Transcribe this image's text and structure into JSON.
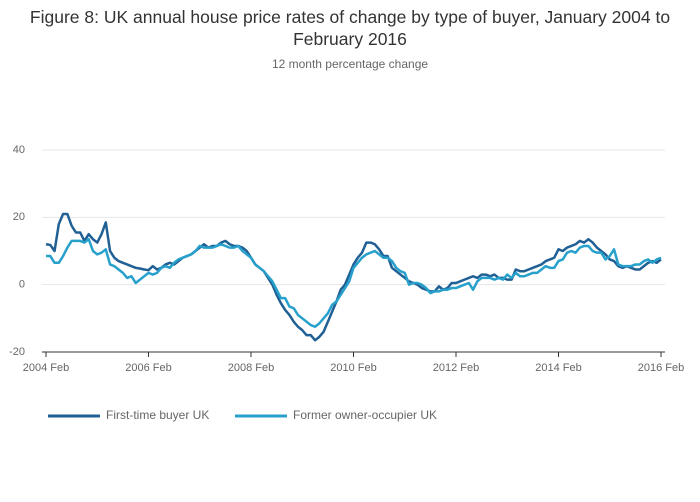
{
  "chart_data": {
    "type": "line",
    "title": "Figure 8: UK annual house price rates of change by type of buyer, January 2004 to February 2016",
    "subtitle": "12 month percentage change",
    "x": [
      "2004-02",
      "2004-03",
      "2004-04",
      "2004-05",
      "2004-06",
      "2004-07",
      "2004-08",
      "2004-09",
      "2004-10",
      "2004-11",
      "2004-12",
      "2005-01",
      "2005-02",
      "2005-03",
      "2005-04",
      "2005-05",
      "2005-06",
      "2005-07",
      "2005-08",
      "2005-09",
      "2005-10",
      "2005-11",
      "2005-12",
      "2006-01",
      "2006-02",
      "2006-03",
      "2006-04",
      "2006-05",
      "2006-06",
      "2006-07",
      "2006-08",
      "2006-09",
      "2006-10",
      "2006-11",
      "2006-12",
      "2007-01",
      "2007-02",
      "2007-03",
      "2007-04",
      "2007-05",
      "2007-06",
      "2007-07",
      "2007-08",
      "2007-09",
      "2007-10",
      "2007-11",
      "2007-12",
      "2008-01",
      "2008-02",
      "2008-03",
      "2008-04",
      "2008-05",
      "2008-06",
      "2008-07",
      "2008-08",
      "2008-09",
      "2008-10",
      "2008-11",
      "2008-12",
      "2009-01",
      "2009-02",
      "2009-03",
      "2009-04",
      "2009-05",
      "2009-06",
      "2009-07",
      "2009-08",
      "2009-09",
      "2009-10",
      "2009-11",
      "2009-12",
      "2010-01",
      "2010-02",
      "2010-03",
      "2010-04",
      "2010-05",
      "2010-06",
      "2010-07",
      "2010-08",
      "2010-09",
      "2010-10",
      "2010-11",
      "2010-12",
      "2011-01",
      "2011-02",
      "2011-03",
      "2011-04",
      "2011-05",
      "2011-06",
      "2011-07",
      "2011-08",
      "2011-09",
      "2011-10",
      "2011-11",
      "2011-12",
      "2012-01",
      "2012-02",
      "2012-03",
      "2012-04",
      "2012-05",
      "2012-06",
      "2012-07",
      "2012-08",
      "2012-09",
      "2012-10",
      "2012-11",
      "2012-12",
      "2013-01",
      "2013-02",
      "2013-03",
      "2013-04",
      "2013-05",
      "2013-06",
      "2013-07",
      "2013-08",
      "2013-09",
      "2013-10",
      "2013-11",
      "2013-12",
      "2014-01",
      "2014-02",
      "2014-03",
      "2014-04",
      "2014-05",
      "2014-06",
      "2014-07",
      "2014-08",
      "2014-09",
      "2014-10",
      "2014-11",
      "2014-12",
      "2015-01",
      "2015-02",
      "2015-03",
      "2015-04",
      "2015-05",
      "2015-06",
      "2015-07",
      "2015-08",
      "2015-09",
      "2015-10",
      "2015-11",
      "2015-12",
      "2016-01",
      "2016-02"
    ],
    "series": [
      {
        "name": "First-time buyer UK",
        "color": "#206095",
        "values": [
          12,
          11.8,
          10,
          18,
          21,
          21,
          17.5,
          15.5,
          15.5,
          13,
          15,
          13.5,
          12.5,
          15,
          18.5,
          10,
          8,
          7,
          6.5,
          6,
          5.5,
          5,
          4.8,
          4.5,
          4.3,
          5.5,
          4.5,
          5,
          6,
          6.5,
          6,
          7,
          8,
          8.5,
          9,
          10,
          11,
          12,
          11,
          11.5,
          11.5,
          12.5,
          13,
          12,
          11.5,
          11.5,
          11,
          10,
          8,
          6,
          5,
          4,
          2,
          0,
          -3,
          -5.5,
          -7.5,
          -9,
          -11,
          -12.5,
          -13.5,
          -15,
          -15,
          -16.5,
          -15.5,
          -14,
          -11,
          -8,
          -5,
          -1.5,
          0,
          3,
          6,
          8,
          9.5,
          12.5,
          12.5,
          12,
          10.5,
          8.5,
          8.5,
          5,
          4,
          3,
          2,
          1,
          0.5,
          0,
          -1,
          -1.5,
          -2,
          -2,
          -0.5,
          -1.5,
          -1,
          0.5,
          0.5,
          1,
          1.5,
          2,
          2.5,
          2,
          3,
          3,
          2.5,
          3,
          2,
          2,
          1.5,
          1.5,
          4.5,
          4,
          4,
          4.5,
          5,
          5.5,
          6,
          7,
          7.5,
          8,
          10.5,
          10,
          11,
          11.5,
          12,
          13,
          12.5,
          13.5,
          12.5,
          11,
          10,
          9,
          7.5,
          7,
          5.5,
          5,
          5.5,
          5,
          4.5,
          4.5,
          5.5,
          6.5,
          7,
          6.5,
          7.5
        ]
      },
      {
        "name": "Former owner-occupier UK",
        "color": "#27a0cc",
        "values": [
          8.5,
          8.5,
          6.5,
          6.5,
          8.5,
          11,
          13,
          13,
          13,
          12.5,
          13.5,
          10,
          9,
          9.5,
          10.5,
          6,
          5.5,
          4.5,
          3.5,
          2,
          2.5,
          0.5,
          1.5,
          2.5,
          3.5,
          3,
          3.5,
          5,
          5.5,
          5,
          6.5,
          7.5,
          8,
          8.5,
          9,
          10,
          11.5,
          11,
          11,
          11,
          11.5,
          12,
          11.5,
          11,
          11,
          11.5,
          10,
          9,
          8,
          6,
          5,
          4,
          2.5,
          1,
          -1.5,
          -4,
          -4,
          -6.5,
          -7,
          -9,
          -10,
          -11,
          -12,
          -12.5,
          -11.5,
          -10,
          -8.5,
          -6,
          -5,
          -3,
          -1,
          1,
          5,
          6.5,
          8,
          9,
          9.5,
          10,
          9,
          8,
          8,
          7,
          5,
          4,
          3.5,
          0,
          0.5,
          0.5,
          0,
          -1,
          -2.5,
          -2,
          -2,
          -1.5,
          -1.5,
          -1,
          -1,
          -0.5,
          0,
          0.5,
          -1.5,
          1,
          2,
          2,
          2,
          1.5,
          2,
          1.5,
          3,
          2,
          3.5,
          2.5,
          2.5,
          3,
          3.5,
          3.5,
          4.5,
          5.5,
          5,
          5,
          7,
          7.5,
          9.5,
          10,
          9.5,
          11,
          11.5,
          11.5,
          10,
          9.5,
          9.5,
          7.5,
          8.5,
          10.5,
          6,
          5.5,
          5.5,
          5.5,
          6,
          6,
          7,
          7.5,
          6.5,
          7.5,
          8
        ]
      }
    ],
    "xlim": [
      "2004-02",
      "2016-02"
    ],
    "xticks": [
      {
        "value": "2004-02",
        "label": "2004 Feb"
      },
      {
        "value": "2006-02",
        "label": "2006 Feb"
      },
      {
        "value": "2008-02",
        "label": "2008 Feb"
      },
      {
        "value": "2010-02",
        "label": "2010 Feb"
      },
      {
        "value": "2012-02",
        "label": "2012 Feb"
      },
      {
        "value": "2014-02",
        "label": "2014 Feb"
      },
      {
        "value": "2016-02",
        "label": "2016 Feb"
      }
    ],
    "ylim": [
      -20,
      40
    ],
    "yticks": [
      -20,
      0,
      20,
      40
    ],
    "grid": true,
    "legend": "bottom"
  }
}
